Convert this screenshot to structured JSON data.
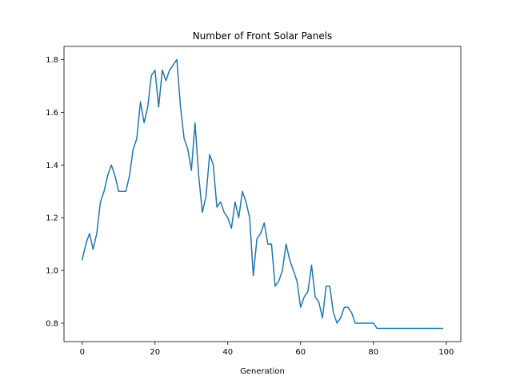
{
  "chart_data": {
    "type": "line",
    "title": "Number of Front Solar Panels",
    "xlabel": "Generation",
    "ylabel": "",
    "xlim": [
      -5,
      104
    ],
    "ylim": [
      0.73,
      1.85
    ],
    "xticks": [
      0,
      20,
      40,
      60,
      80,
      100
    ],
    "yticks": [
      0.8,
      1.0,
      1.2,
      1.4,
      1.6,
      1.8
    ],
    "xtick_labels": [
      "0",
      "20",
      "40",
      "60",
      "80",
      "100"
    ],
    "ytick_labels": [
      "0.8",
      "1.0",
      "1.2",
      "1.4",
      "1.6",
      "1.8"
    ],
    "grid": false,
    "line_color": "#1f77b4",
    "series": [
      {
        "x": [
          0,
          1,
          2,
          3,
          4,
          5,
          6,
          7,
          8,
          9,
          10,
          11,
          12,
          13,
          14,
          15,
          16,
          17,
          18,
          19,
          20,
          21,
          22,
          23,
          24,
          25,
          26,
          27,
          28,
          29,
          30,
          31,
          32,
          33,
          34,
          35,
          36,
          37,
          38,
          39,
          40,
          41,
          42,
          43,
          44,
          45,
          46,
          47,
          48,
          49,
          50,
          51,
          52,
          53,
          54,
          55,
          56,
          57,
          58,
          59,
          60,
          61,
          62,
          63,
          64,
          65,
          66,
          67,
          68,
          69,
          70,
          71,
          72,
          73,
          74,
          75,
          76,
          77,
          78,
          79,
          80,
          81,
          82,
          83,
          84,
          85,
          86,
          87,
          88,
          89,
          90,
          91,
          92,
          93,
          94,
          95,
          96,
          97,
          98,
          99
        ],
        "values": [
          1.04,
          1.1,
          1.14,
          1.08,
          1.14,
          1.26,
          1.3,
          1.36,
          1.4,
          1.36,
          1.3,
          1.3,
          1.3,
          1.36,
          1.46,
          1.5,
          1.64,
          1.56,
          1.62,
          1.74,
          1.76,
          1.62,
          1.76,
          1.72,
          1.76,
          1.78,
          1.8,
          1.62,
          1.5,
          1.46,
          1.38,
          1.56,
          1.36,
          1.22,
          1.28,
          1.44,
          1.4,
          1.24,
          1.26,
          1.22,
          1.2,
          1.16,
          1.26,
          1.2,
          1.3,
          1.26,
          1.2,
          0.98,
          1.12,
          1.14,
          1.18,
          1.1,
          1.1,
          0.94,
          0.96,
          1.0,
          1.1,
          1.04,
          1.0,
          0.96,
          0.86,
          0.9,
          0.92,
          1.02,
          0.9,
          0.88,
          0.82,
          0.94,
          0.94,
          0.84,
          0.8,
          0.82,
          0.86,
          0.86,
          0.84,
          0.8,
          0.8,
          0.8,
          0.8,
          0.8,
          0.8,
          0.78,
          0.78,
          0.78,
          0.78,
          0.78,
          0.78,
          0.78,
          0.78,
          0.78,
          0.78,
          0.78,
          0.78,
          0.78,
          0.78,
          0.78,
          0.78,
          0.78,
          0.78,
          0.78
        ]
      }
    ]
  }
}
